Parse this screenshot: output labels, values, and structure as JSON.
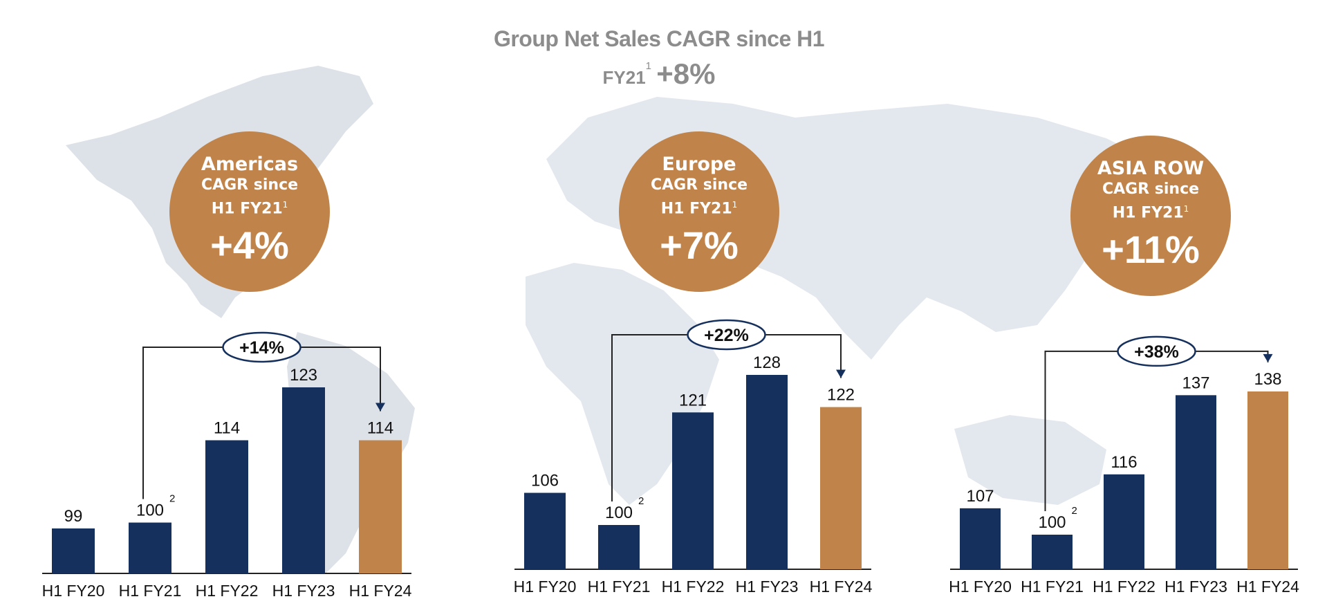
{
  "header": {
    "title_line1": "Group Net Sales CAGR since H1",
    "title_line2_text": "FY21",
    "title_line2_sup": "1",
    "title_line2_value": "+8%"
  },
  "colors": {
    "navy": "#15305c",
    "gold": "#c0844a",
    "title_gray": "#8c8c8c",
    "map": "#e3e7ee"
  },
  "regions": [
    {
      "name": "Americas",
      "cagr_label": "CAGR since",
      "cagr_period": "H1 FY21",
      "footnote": "1",
      "cagr_value": "+4%"
    },
    {
      "name": "Europe",
      "cagr_label": "CAGR since",
      "cagr_period": "H1 FY21",
      "footnote": "1",
      "cagr_value": "+7%"
    },
    {
      "name": "ASIA ROW",
      "cagr_label": "CAGR since",
      "cagr_period": "H1 FY21",
      "footnote": "1",
      "cagr_value": "+11%"
    }
  ],
  "chart_data": [
    {
      "type": "bar",
      "title": "Americas",
      "categories": [
        "H1 FY20",
        "H1 FY21",
        "H1 FY22",
        "H1 FY23",
        "H1 FY24"
      ],
      "values": [
        99,
        100,
        114,
        123,
        114
      ],
      "baseline_footnote": "2",
      "growth_label": "+14%",
      "growth_from": "H1 FY21",
      "growth_to": "H1 FY24",
      "highlight": "H1 FY24"
    },
    {
      "type": "bar",
      "title": "Europe",
      "categories": [
        "H1 FY20",
        "H1 FY21",
        "H1 FY22",
        "H1 FY23",
        "H1 FY24"
      ],
      "values": [
        106,
        100,
        121,
        128,
        122
      ],
      "baseline_footnote": "2",
      "growth_label": "+22%",
      "growth_from": "H1 FY21",
      "growth_to": "H1 FY24",
      "highlight": "H1 FY24"
    },
    {
      "type": "bar",
      "title": "ASIA ROW",
      "categories": [
        "H1 FY20",
        "H1 FY21",
        "H1 FY22",
        "H1 FY23",
        "H1 FY24"
      ],
      "values": [
        107,
        100,
        116,
        137,
        138
      ],
      "baseline_footnote": "2",
      "growth_label": "+38%",
      "growth_from": "H1 FY21",
      "growth_to": "H1 FY24",
      "highlight": "H1 FY24"
    }
  ]
}
